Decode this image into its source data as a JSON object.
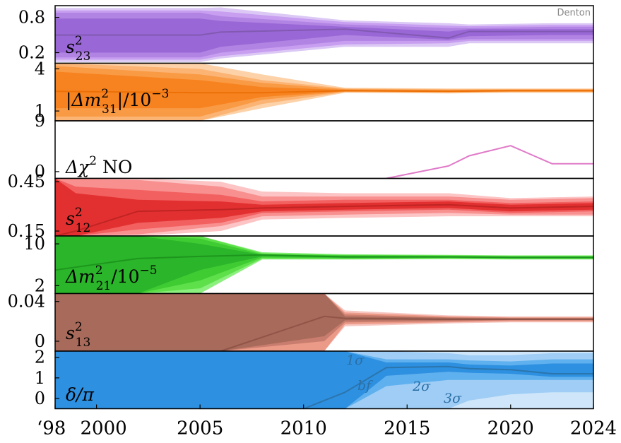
{
  "credit": "Denton",
  "x_ticks": [
    "‘98",
    "2000",
    "2005",
    "2010",
    "2015",
    "2020",
    "2024"
  ],
  "chart_data": [
    {
      "type": "area",
      "id": "s23",
      "label_main": "s",
      "label_sup": "2",
      "label_sub": "23",
      "y_ticks": [
        "0.8",
        "0.2"
      ],
      "y_tick_values": [
        0.8,
        0.2
      ],
      "ylim": [
        0.02,
        1.0
      ],
      "color_bands": [
        "#dcc8f5",
        "#c79ef0",
        "#b184e3",
        "#9a68d6"
      ],
      "line_color": "#7a55a8",
      "x": [
        1998,
        2005,
        2006,
        2012,
        2017,
        2018,
        2022,
        2024
      ],
      "bf": [
        0.5,
        0.5,
        0.55,
        0.6,
        0.45,
        0.56,
        0.56,
        0.56
      ],
      "bands": [
        {
          "lo": [
            0.04,
            0.04,
            0.1,
            0.3,
            0.3,
            0.36,
            0.36,
            0.36
          ],
          "hi": [
            0.96,
            0.96,
            0.97,
            0.75,
            0.7,
            0.68,
            0.7,
            0.7
          ]
        },
        {
          "lo": [
            0.08,
            0.08,
            0.14,
            0.34,
            0.36,
            0.4,
            0.4,
            0.4
          ],
          "hi": [
            0.92,
            0.92,
            0.9,
            0.72,
            0.66,
            0.65,
            0.67,
            0.67
          ]
        },
        {
          "lo": [
            0.12,
            0.12,
            0.2,
            0.4,
            0.4,
            0.43,
            0.43,
            0.43
          ],
          "hi": [
            0.88,
            0.88,
            0.82,
            0.68,
            0.62,
            0.62,
            0.64,
            0.64
          ]
        },
        {
          "lo": [
            0.2,
            0.2,
            0.3,
            0.5,
            0.42,
            0.48,
            0.5,
            0.5
          ],
          "hi": [
            0.78,
            0.78,
            0.74,
            0.64,
            0.56,
            0.6,
            0.6,
            0.6
          ]
        }
      ]
    },
    {
      "type": "area",
      "id": "dm31",
      "label_main": "|Δm",
      "label_sup": "2",
      "label_sub": "31",
      "label_tail": "|/10",
      "label_tail_sup": "−3",
      "y_ticks": [
        "4",
        "1"
      ],
      "y_tick_values": [
        4,
        1
      ],
      "ylim": [
        0.3,
        4.4
      ],
      "color_bands": [
        "#fdd2a8",
        "#fbb474",
        "#f99a45",
        "#f78320"
      ],
      "line_color": "#e86b00",
      "x": [
        1998,
        2005,
        2008,
        2012,
        2017,
        2020,
        2024
      ],
      "bf": [
        2.4,
        2.3,
        2.3,
        2.45,
        2.4,
        2.45,
        2.45
      ],
      "bands": [
        {
          "lo": [
            0.3,
            0.3,
            1.2,
            2.3,
            2.25,
            2.3,
            2.3
          ],
          "hi": [
            4.4,
            4.4,
            3.6,
            2.65,
            2.6,
            2.6,
            2.6
          ]
        },
        {
          "lo": [
            0.3,
            0.3,
            1.5,
            2.34,
            2.3,
            2.34,
            2.34
          ],
          "hi": [
            4.4,
            4.0,
            3.2,
            2.6,
            2.55,
            2.56,
            2.56
          ]
        },
        {
          "lo": [
            0.6,
            0.6,
            1.8,
            2.38,
            2.34,
            2.38,
            2.38
          ],
          "hi": [
            4.2,
            3.6,
            3.0,
            2.55,
            2.5,
            2.52,
            2.52
          ]
        },
        {
          "lo": [
            1.2,
            1.2,
            2.0,
            2.4,
            2.37,
            2.41,
            2.41
          ],
          "hi": [
            3.8,
            3.2,
            2.7,
            2.5,
            2.46,
            2.49,
            2.49
          ]
        }
      ]
    },
    {
      "type": "line",
      "id": "chi2",
      "label_main": "Δχ",
      "label_sup": "2",
      "label_tail": " NO",
      "y_ticks": [
        "9",
        "0"
      ],
      "y_tick_values": [
        9,
        0
      ],
      "ylim": [
        -1.2,
        9.0
      ],
      "line_color": "#e07ac8",
      "x": [
        2014,
        2017,
        2018,
        2020,
        2022,
        2024
      ],
      "values": [
        -1.2,
        1.0,
        2.8,
        4.6,
        1.4,
        1.4
      ]
    },
    {
      "type": "area",
      "id": "s12",
      "label_main": "s",
      "label_sup": "2",
      "label_sub": "12",
      "y_ticks": [
        "0.45",
        "0.15"
      ],
      "y_tick_values": [
        0.45,
        0.15
      ],
      "ylim": [
        0.12,
        0.47
      ],
      "color_bands": [
        "#fcc4c4",
        "#f89090",
        "#f26060",
        "#e23030"
      ],
      "line_color": "#b82020",
      "x": [
        1998,
        1999,
        2002,
        2006,
        2008,
        2012,
        2017,
        2020,
        2024
      ],
      "bf": [
        0.12,
        0.15,
        0.27,
        0.28,
        0.29,
        0.3,
        0.31,
        0.29,
        0.3
      ],
      "bands": [
        {
          "lo": [
            0.12,
            0.12,
            0.12,
            0.15,
            0.22,
            0.23,
            0.24,
            0.24,
            0.24
          ],
          "hi": [
            0.47,
            0.47,
            0.47,
            0.45,
            0.39,
            0.38,
            0.38,
            0.35,
            0.36
          ]
        },
        {
          "lo": [
            0.12,
            0.12,
            0.13,
            0.18,
            0.24,
            0.25,
            0.26,
            0.25,
            0.25
          ],
          "hi": [
            0.47,
            0.47,
            0.46,
            0.42,
            0.36,
            0.36,
            0.36,
            0.34,
            0.35
          ]
        },
        {
          "lo": [
            0.12,
            0.12,
            0.16,
            0.2,
            0.26,
            0.27,
            0.28,
            0.26,
            0.27
          ],
          "hi": [
            0.47,
            0.42,
            0.4,
            0.37,
            0.33,
            0.34,
            0.34,
            0.32,
            0.33
          ]
        },
        {
          "lo": [
            0.12,
            0.12,
            0.2,
            0.23,
            0.27,
            0.28,
            0.29,
            0.27,
            0.28
          ],
          "hi": [
            0.47,
            0.38,
            0.34,
            0.33,
            0.31,
            0.32,
            0.33,
            0.31,
            0.32
          ]
        }
      ]
    },
    {
      "type": "area",
      "id": "dm21",
      "label_main": "Δm",
      "label_sup": "2",
      "label_sub": "21",
      "label_tail": "/10",
      "label_tail_sup": "−5",
      "y_ticks": [
        "10",
        "2"
      ],
      "y_tick_values": [
        10,
        2
      ],
      "ylim": [
        0.5,
        11.5
      ],
      "color_bands": [
        "#8cf07e",
        "#5ee04a",
        "#3fcc33",
        "#2bb52a"
      ],
      "line_color": "#1a8f1a",
      "x": [
        1998,
        2002,
        2005,
        2008,
        2012,
        2017,
        2020,
        2024
      ],
      "bf": [
        5.0,
        7.2,
        7.6,
        7.9,
        7.5,
        7.5,
        7.4,
        7.4
      ],
      "bands": [
        {
          "lo": [
            0.5,
            0.5,
            0.5,
            7.0,
            7.0,
            7.1,
            7.0,
            7.0
          ],
          "hi": [
            11.5,
            11.5,
            11.5,
            8.4,
            8.0,
            7.9,
            7.8,
            7.8
          ]
        },
        {
          "lo": [
            0.5,
            0.5,
            1.5,
            7.2,
            7.1,
            7.2,
            7.1,
            7.1
          ],
          "hi": [
            11.5,
            11.5,
            11.5,
            8.2,
            7.9,
            7.8,
            7.7,
            7.7
          ]
        },
        {
          "lo": [
            0.5,
            0.5,
            3.0,
            7.4,
            7.25,
            7.3,
            7.2,
            7.2
          ],
          "hi": [
            11.5,
            11.5,
            11.0,
            8.0,
            7.8,
            7.7,
            7.6,
            7.6
          ]
        },
        {
          "lo": [
            0.5,
            0.5,
            5.0,
            7.6,
            7.35,
            7.4,
            7.3,
            7.3
          ],
          "hi": [
            11.5,
            11.5,
            10.0,
            7.9,
            7.7,
            7.65,
            7.55,
            7.55
          ]
        }
      ]
    },
    {
      "type": "area",
      "id": "s13",
      "label_main": "s",
      "label_sup": "2",
      "label_sub": "13",
      "y_ticks": [
        "0.04",
        "0"
      ],
      "y_tick_values": [
        0.04,
        0
      ],
      "ylim": [
        -0.01,
        0.048
      ],
      "color_bands": [
        "#f7c6c0",
        "#ec9a88",
        "#c97d6e",
        "#a86a5a"
      ],
      "line_color": "#8a4f43",
      "x": [
        1998,
        2006,
        2011,
        2012,
        2017,
        2020,
        2024
      ],
      "bf": [
        -0.01,
        -0.01,
        0.025,
        0.023,
        0.022,
        0.022,
        0.022
      ],
      "bands": [
        {
          "lo": [
            -0.01,
            -0.01,
            -0.01,
            0.015,
            0.018,
            0.019,
            0.019
          ],
          "hi": [
            0.048,
            0.048,
            0.048,
            0.031,
            0.026,
            0.025,
            0.025
          ]
        },
        {
          "lo": [
            -0.01,
            -0.01,
            -0.01,
            0.017,
            0.019,
            0.02,
            0.02
          ],
          "hi": [
            0.048,
            0.048,
            0.048,
            0.029,
            0.025,
            0.024,
            0.024
          ]
        },
        {
          "lo": [
            -0.01,
            -0.01,
            0.0,
            0.019,
            0.02,
            0.021,
            0.021
          ],
          "hi": [
            0.048,
            0.048,
            0.048,
            0.027,
            0.024,
            0.0235,
            0.0235
          ]
        },
        {
          "lo": [
            -0.01,
            -0.01,
            0.005,
            0.021,
            0.021,
            0.0215,
            0.0215
          ],
          "hi": [
            0.048,
            0.048,
            0.048,
            0.025,
            0.0235,
            0.023,
            0.023
          ]
        }
      ]
    },
    {
      "type": "area",
      "id": "delta",
      "label_main": "δ/π",
      "y_ticks": [
        "2",
        "1",
        "0"
      ],
      "y_tick_values": [
        2,
        1,
        0
      ],
      "ylim": [
        -0.5,
        2.3
      ],
      "color_bands": [
        "#cfe6fa",
        "#9fcdf5",
        "#5fb0ee",
        "#2e90e0"
      ],
      "line_color": "#2a6ea0",
      "x": [
        1998,
        2010,
        2012,
        2014,
        2017,
        2018,
        2020,
        2022,
        2024
      ],
      "bf": [
        -0.5,
        -0.5,
        0.3,
        1.5,
        1.55,
        1.45,
        1.4,
        1.2,
        1.2
      ],
      "bands": [
        {
          "lo": [
            -0.5,
            -0.5,
            -0.5,
            -0.5,
            -0.5,
            -0.5,
            -0.5,
            -0.5,
            -0.5
          ],
          "hi": [
            2.3,
            2.3,
            2.3,
            2.3,
            2.3,
            2.3,
            2.3,
            2.3,
            2.3
          ]
        },
        {
          "lo": [
            -0.5,
            -0.5,
            -0.5,
            -0.5,
            -0.5,
            -0.1,
            0.2,
            0.3,
            0.3
          ],
          "hi": [
            2.3,
            2.3,
            2.3,
            2.3,
            2.2,
            2.1,
            2.1,
            2.2,
            2.2
          ]
        },
        {
          "lo": [
            -0.5,
            -0.5,
            -0.5,
            0.6,
            0.9,
            0.9,
            0.9,
            0.9,
            0.9
          ],
          "hi": [
            2.3,
            2.3,
            2.3,
            1.9,
            1.9,
            1.85,
            1.8,
            1.9,
            1.9
          ]
        },
        {
          "lo": [
            -0.5,
            -0.5,
            -0.5,
            1.1,
            1.3,
            1.25,
            1.2,
            1.05,
            1.05
          ],
          "hi": [
            2.3,
            2.3,
            2.3,
            1.75,
            1.75,
            1.65,
            1.6,
            1.7,
            1.7
          ]
        }
      ],
      "annotations": [
        "1σ",
        "bf",
        "2σ",
        "3σ"
      ]
    }
  ]
}
